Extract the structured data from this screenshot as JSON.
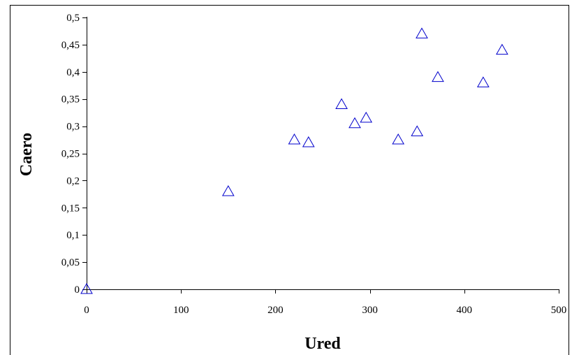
{
  "chart_data": {
    "type": "scatter",
    "title": "",
    "xlabel": "Ured",
    "ylabel": "Caero",
    "xlim": [
      0,
      500
    ],
    "ylim": [
      0,
      0.5
    ],
    "x_ticks": [
      "0",
      "100",
      "200",
      "300",
      "400",
      "500"
    ],
    "y_ticks": [
      "0",
      "0,05",
      "0,1",
      "0,15",
      "0,2",
      "0,25",
      "0,3",
      "0,35",
      "0,4",
      "0,45",
      "0,5"
    ],
    "grid": false,
    "legend": "none",
    "marker": "open-triangle",
    "marker_color": "#0000cc",
    "series": [
      {
        "points": [
          {
            "x": 0,
            "y": 0
          },
          {
            "x": 150,
            "y": 0.18
          },
          {
            "x": 220,
            "y": 0.275
          },
          {
            "x": 235,
            "y": 0.27
          },
          {
            "x": 270,
            "y": 0.34
          },
          {
            "x": 284,
            "y": 0.305
          },
          {
            "x": 296,
            "y": 0.315
          },
          {
            "x": 330,
            "y": 0.275
          },
          {
            "x": 350,
            "y": 0.29
          },
          {
            "x": 355,
            "y": 0.47
          },
          {
            "x": 372,
            "y": 0.39
          },
          {
            "x": 420,
            "y": 0.38
          },
          {
            "x": 440,
            "y": 0.44
          }
        ]
      }
    ]
  }
}
